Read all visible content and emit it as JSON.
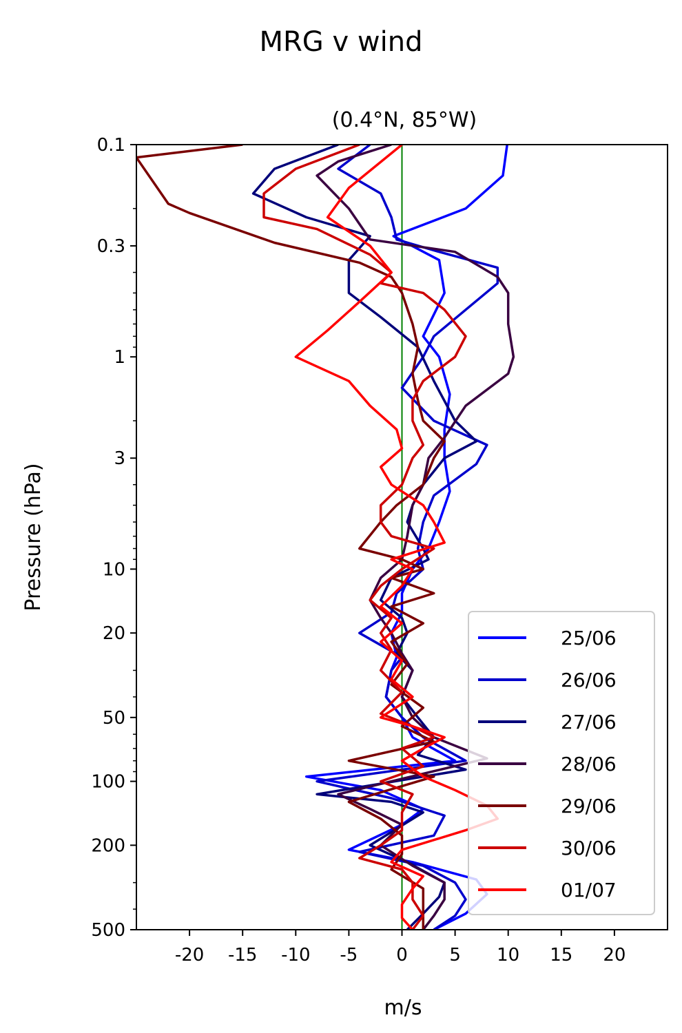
{
  "figure": {
    "suptitle": "MRG v wind"
  },
  "chart_data": {
    "type": "line",
    "title": "(0.4°N, 85°W)",
    "xlabel": "m/s",
    "ylabel": "Pressure (hPa)",
    "xlim": [
      -25,
      25
    ],
    "ylim": [
      500,
      0.1
    ],
    "yscale": "log",
    "grid": false,
    "legend_position": "lower-right",
    "xticks": [
      {
        "value": -20,
        "label": "-20"
      },
      {
        "value": -15,
        "label": "-15"
      },
      {
        "value": -10,
        "label": "-10"
      },
      {
        "value": -5,
        "label": "-5"
      },
      {
        "value": 0,
        "label": "0"
      },
      {
        "value": 5,
        "label": "5"
      },
      {
        "value": 10,
        "label": "10"
      },
      {
        "value": 15,
        "label": "15"
      },
      {
        "value": 20,
        "label": "20"
      }
    ],
    "yticks": [
      {
        "value": 0.1,
        "label": "0.1"
      },
      {
        "value": 0.3,
        "label": "0.3"
      },
      {
        "value": 1,
        "label": "1"
      },
      {
        "value": 3,
        "label": "3"
      },
      {
        "value": 10,
        "label": "10"
      },
      {
        "value": 20,
        "label": "20"
      },
      {
        "value": 50,
        "label": "50"
      },
      {
        "value": 100,
        "label": "100"
      },
      {
        "value": 200,
        "label": "200"
      },
      {
        "value": 500,
        "label": "500"
      }
    ],
    "reference_line": {
      "x": 0,
      "color": "#008000"
    },
    "series": [
      {
        "name": "25/06",
        "color": "#0000ff",
        "points": [
          [
            9.9,
            0.1
          ],
          [
            9.5,
            0.14
          ],
          [
            6,
            0.2
          ],
          [
            -0.8,
            0.27
          ],
          [
            3.5,
            0.35
          ],
          [
            4,
            0.5
          ],
          [
            2,
            0.8
          ],
          [
            3.5,
            1.0
          ],
          [
            4.5,
            1.5
          ],
          [
            4,
            2.2
          ],
          [
            4,
            3
          ],
          [
            4.5,
            4.3
          ],
          [
            3.5,
            6
          ],
          [
            2.5,
            8
          ],
          [
            1,
            10
          ],
          [
            0,
            13
          ],
          [
            0,
            16
          ],
          [
            -1,
            20
          ],
          [
            -0.5,
            26
          ],
          [
            -1,
            30
          ],
          [
            -1.5,
            40
          ],
          [
            0,
            50
          ],
          [
            1,
            62
          ],
          [
            5,
            80
          ],
          [
            -9,
            95
          ],
          [
            -2,
            110
          ],
          [
            2,
            135
          ],
          [
            0,
            160
          ],
          [
            -5,
            210
          ],
          [
            1,
            240
          ],
          [
            7,
            290
          ],
          [
            8,
            340
          ],
          [
            6,
            420
          ],
          [
            3,
            500
          ]
        ]
      },
      {
        "name": "26/06",
        "color": "#0000cc",
        "points": [
          [
            -3,
            0.1
          ],
          [
            -6,
            0.13
          ],
          [
            -2,
            0.17
          ],
          [
            -1,
            0.22
          ],
          [
            -0.5,
            0.28
          ],
          [
            3.5,
            0.32
          ],
          [
            9,
            0.38
          ],
          [
            9,
            0.45
          ],
          [
            6,
            0.6
          ],
          [
            3,
            0.8
          ],
          [
            2,
            1.0
          ],
          [
            0,
            1.4
          ],
          [
            3,
            2
          ],
          [
            8,
            2.6
          ],
          [
            7,
            3.2
          ],
          [
            3,
            4.5
          ],
          [
            2,
            6
          ],
          [
            1.5,
            8
          ],
          [
            2,
            10
          ],
          [
            -0.5,
            13
          ],
          [
            -1,
            16
          ],
          [
            -4,
            20
          ],
          [
            0,
            26
          ],
          [
            -1,
            30
          ],
          [
            -1.5,
            40
          ],
          [
            0,
            50
          ],
          [
            2,
            62
          ],
          [
            6,
            80
          ],
          [
            -8,
            100
          ],
          [
            -1,
            120
          ],
          [
            4,
            145
          ],
          [
            3,
            180
          ],
          [
            -4,
            215
          ],
          [
            2,
            250
          ],
          [
            5,
            300
          ],
          [
            6,
            360
          ],
          [
            5,
            430
          ],
          [
            3,
            500
          ]
        ]
      },
      {
        "name": "27/06",
        "color": "#00007a",
        "points": [
          [
            -6,
            0.1
          ],
          [
            -12,
            0.13
          ],
          [
            -14,
            0.17
          ],
          [
            -9,
            0.22
          ],
          [
            -3,
            0.27
          ],
          [
            -5,
            0.35
          ],
          [
            -5,
            0.5
          ],
          [
            -2,
            0.65
          ],
          [
            1.5,
            0.9
          ],
          [
            3,
            1.3
          ],
          [
            5,
            2
          ],
          [
            7,
            2.5
          ],
          [
            4,
            3
          ],
          [
            2,
            4
          ],
          [
            1,
            5
          ],
          [
            0.5,
            6
          ],
          [
            2,
            8
          ],
          [
            2.5,
            9
          ],
          [
            -1,
            11
          ],
          [
            -2,
            14
          ],
          [
            0,
            17
          ],
          [
            0.5,
            20
          ],
          [
            -0.5,
            25
          ],
          [
            1,
            30
          ],
          [
            0,
            40
          ],
          [
            1.5,
            50
          ],
          [
            3,
            62
          ],
          [
            1.5,
            75
          ],
          [
            6,
            88
          ],
          [
            -8,
            115
          ],
          [
            -1,
            125
          ],
          [
            2,
            140
          ],
          [
            -3,
            200
          ],
          [
            0.5,
            240
          ],
          [
            4,
            300
          ],
          [
            3.5,
            350
          ],
          [
            2,
            420
          ],
          [
            0.5,
            500
          ]
        ]
      },
      {
        "name": "28/06",
        "color": "#3a0041",
        "points": [
          [
            -1,
            0.1
          ],
          [
            -6,
            0.12
          ],
          [
            -8,
            0.14
          ],
          [
            -5,
            0.2
          ],
          [
            -3,
            0.28
          ],
          [
            5,
            0.32
          ],
          [
            9,
            0.42
          ],
          [
            10,
            0.5
          ],
          [
            10,
            0.7
          ],
          [
            10.5,
            1.0
          ],
          [
            10,
            1.2
          ],
          [
            6,
            1.7
          ],
          [
            4,
            2.4
          ],
          [
            2.5,
            3
          ],
          [
            2,
            4
          ],
          [
            1,
            5
          ],
          [
            0.5,
            7
          ],
          [
            0,
            9
          ],
          [
            -2,
            11
          ],
          [
            -3,
            14
          ],
          [
            -2,
            17
          ],
          [
            -1,
            20
          ],
          [
            0,
            25
          ],
          [
            1,
            30
          ],
          [
            0,
            40
          ],
          [
            1,
            50
          ],
          [
            3,
            62
          ],
          [
            8,
            78
          ],
          [
            -1,
            100
          ],
          [
            -6,
            115
          ],
          [
            -3,
            135
          ],
          [
            0,
            160
          ],
          [
            -2,
            200
          ],
          [
            1,
            250
          ],
          [
            4,
            300
          ],
          [
            4,
            360
          ],
          [
            3,
            430
          ],
          [
            2,
            500
          ]
        ]
      },
      {
        "name": "29/06",
        "color": "#7a0000",
        "points": [
          [
            -15,
            0.1
          ],
          [
            -25,
            0.115
          ],
          [
            -22,
            0.19
          ],
          [
            -20,
            0.21
          ],
          [
            -12,
            0.29
          ],
          [
            -4,
            0.36
          ],
          [
            -1,
            0.42
          ],
          [
            0,
            0.5
          ],
          [
            1,
            0.7
          ],
          [
            1.5,
            0.9
          ],
          [
            1,
            1.2
          ],
          [
            1.5,
            1.6
          ],
          [
            2,
            2
          ],
          [
            4,
            2.5
          ],
          [
            3,
            3
          ],
          [
            2,
            4
          ],
          [
            -0.5,
            5
          ],
          [
            -2,
            6
          ],
          [
            -4,
            8
          ],
          [
            0,
            9
          ],
          [
            2,
            10
          ],
          [
            -1,
            11
          ],
          [
            3,
            13
          ],
          [
            -1,
            15
          ],
          [
            2,
            18
          ],
          [
            -1,
            22
          ],
          [
            0.5,
            28
          ],
          [
            -1,
            35
          ],
          [
            2,
            45
          ],
          [
            0,
            55
          ],
          [
            3,
            65
          ],
          [
            -5,
            80
          ],
          [
            3,
            95
          ],
          [
            -5,
            125
          ],
          [
            -2,
            150
          ],
          [
            0,
            180
          ],
          [
            0,
            220
          ],
          [
            -1,
            260
          ],
          [
            2,
            320
          ],
          [
            2,
            400
          ],
          [
            2,
            500
          ]
        ]
      },
      {
        "name": "30/06",
        "color": "#cc0000",
        "points": [
          [
            -4,
            0.1
          ],
          [
            -10,
            0.13
          ],
          [
            -13,
            0.17
          ],
          [
            -13,
            0.22
          ],
          [
            -8,
            0.25
          ],
          [
            -3,
            0.33
          ],
          [
            -1,
            0.4
          ],
          [
            -2,
            0.45
          ],
          [
            2,
            0.5
          ],
          [
            4,
            0.6
          ],
          [
            6,
            0.8
          ],
          [
            5,
            1.0
          ],
          [
            2,
            1.3
          ],
          [
            1,
            1.6
          ],
          [
            1,
            2
          ],
          [
            2,
            2.6
          ],
          [
            1,
            3
          ],
          [
            0,
            4
          ],
          [
            -2,
            5
          ],
          [
            -2,
            6
          ],
          [
            -1,
            7
          ],
          [
            3,
            8
          ],
          [
            0,
            10
          ],
          [
            -2,
            12
          ],
          [
            -3,
            14
          ],
          [
            -1,
            17
          ],
          [
            -2,
            20
          ],
          [
            -1,
            24
          ],
          [
            -2,
            30
          ],
          [
            0,
            38
          ],
          [
            -2,
            48
          ],
          [
            1,
            55
          ],
          [
            3,
            62
          ],
          [
            0,
            70
          ],
          [
            2,
            85
          ],
          [
            -2,
            100
          ],
          [
            1,
            115
          ],
          [
            0,
            140
          ],
          [
            0,
            170
          ],
          [
            -2,
            200
          ],
          [
            -4,
            230
          ],
          [
            0,
            260
          ],
          [
            1,
            300
          ],
          [
            1,
            360
          ],
          [
            2,
            430
          ],
          [
            1,
            500
          ]
        ]
      },
      {
        "name": "01/07",
        "color": "#ff0000",
        "points": [
          [
            0,
            0.1
          ],
          [
            -5,
            0.16
          ],
          [
            -7,
            0.22
          ],
          [
            -3,
            0.3
          ],
          [
            -1,
            0.4
          ],
          [
            -4,
            0.55
          ],
          [
            -7,
            0.75
          ],
          [
            -10,
            1.0
          ],
          [
            -5,
            1.3
          ],
          [
            -3,
            1.7
          ],
          [
            -0.5,
            2.2
          ],
          [
            0,
            2.7
          ],
          [
            -2,
            3.3
          ],
          [
            -1,
            4
          ],
          [
            2,
            5
          ],
          [
            3,
            6
          ],
          [
            4,
            7.5
          ],
          [
            -1,
            9
          ],
          [
            1,
            10
          ],
          [
            0,
            12
          ],
          [
            -2,
            15
          ],
          [
            0,
            18
          ],
          [
            -2,
            22
          ],
          [
            0,
            27
          ],
          [
            -1,
            33
          ],
          [
            1,
            40
          ],
          [
            -2,
            50
          ],
          [
            1,
            55
          ],
          [
            4,
            62
          ],
          [
            2,
            70
          ],
          [
            0,
            80
          ],
          [
            2,
            95
          ],
          [
            5,
            110
          ],
          [
            8,
            130
          ],
          [
            9,
            150
          ],
          [
            6,
            170
          ],
          [
            0,
            210
          ],
          [
            -1,
            240
          ],
          [
            2,
            280
          ],
          [
            1,
            320
          ],
          [
            0,
            380
          ],
          [
            0,
            440
          ],
          [
            1,
            500
          ]
        ]
      }
    ]
  }
}
